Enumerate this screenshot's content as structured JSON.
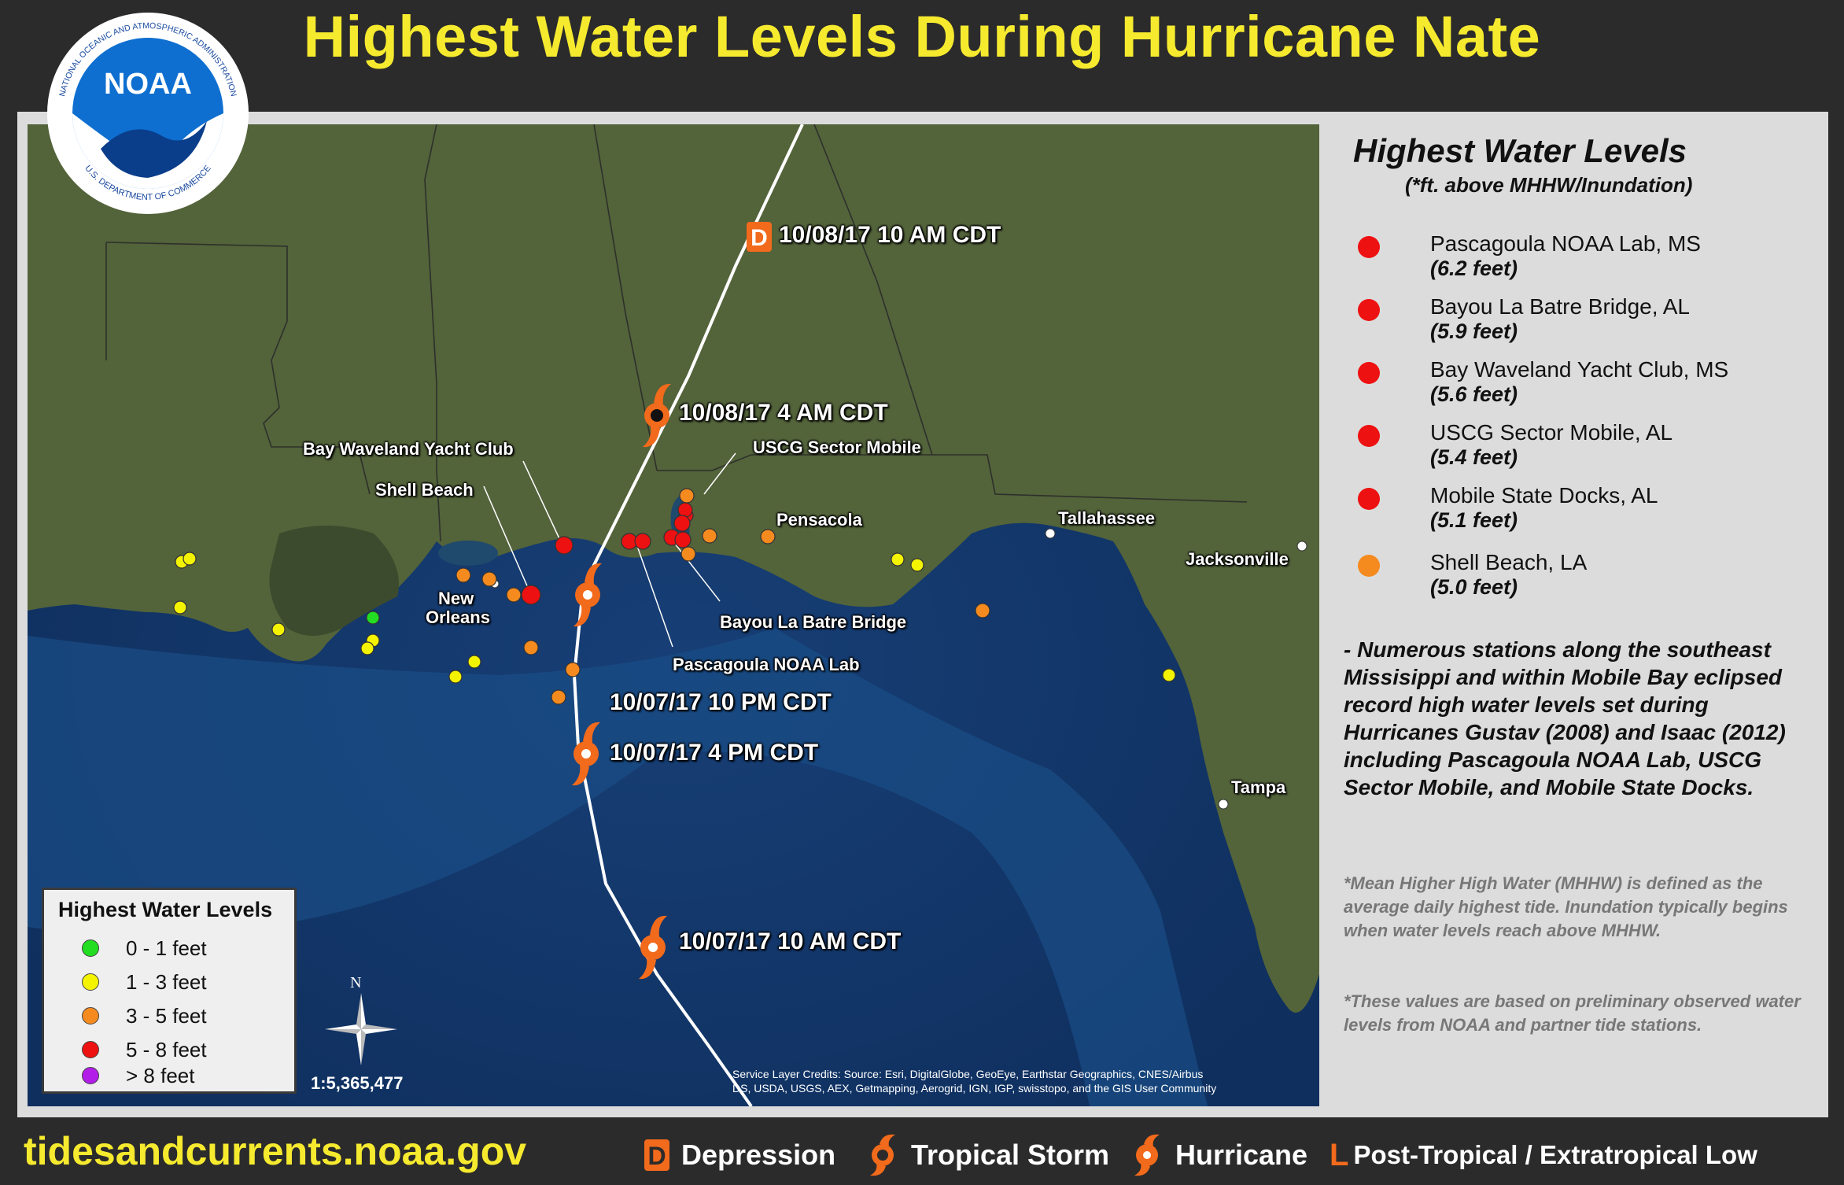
{
  "title": "Highest Water Levels During Hurricane Nate",
  "logo": {
    "text": "NOAA",
    "ring_top": "NATIONAL OCEANIC AND ATMOSPHERIC ADMINISTRATION",
    "ring_bottom": "U.S. DEPARTMENT OF COMMERCE"
  },
  "map": {
    "track_times": [
      "10/08/17 10 AM CDT",
      "10/08/17 4 AM CDT",
      "10/07/17 10 PM CDT",
      "10/07/17 4 PM CDT",
      "10/07/17 10 AM CDT"
    ],
    "station_labels": [
      "Bay Waveland Yacht Club",
      "Shell Beach",
      "USCG Sector Mobile",
      "Bayou La Batre Bridge",
      "Pascagoula NOAA Lab"
    ],
    "city_labels": [
      "Pensacola",
      "Tallahassee",
      "Jacksonville",
      "New",
      "Orleans",
      "Tampa"
    ],
    "credits_line1": "Service Layer Credits: Source: Esri, DigitalGlobe, GeoEye, Earthstar Geographics, CNES/Airbus",
    "credits_line2": "DS, USDA, USGS, AEX, Getmapping, Aerogrid, IGN, IGP, swisstopo, and the GIS User Community",
    "scale": "1:5,365,477",
    "north": "N"
  },
  "map_legend": {
    "title": "Highest Water Levels",
    "items": [
      {
        "label": "0 - 1 feet",
        "color": "#22dd22"
      },
      {
        "label": "1 - 3 feet",
        "color": "#f4f400"
      },
      {
        "label": "3 - 5 feet",
        "color": "#f58a1f"
      },
      {
        "label": "5 - 8 feet",
        "color": "#ee1111"
      },
      {
        "label": "> 8 feet",
        "color": "#b21ee8"
      }
    ]
  },
  "panel": {
    "title": "Highest Water Levels",
    "subtitle": "(*ft. above MHHW/Inundation)",
    "stations": [
      {
        "name": "Pascagoula NOAA Lab, MS",
        "value": "(6.2 feet)",
        "color": "#ee1111"
      },
      {
        "name": "Bayou La Batre Bridge, AL",
        "value": "(5.9 feet)",
        "color": "#ee1111"
      },
      {
        "name": "Bay Waveland Yacht Club, MS",
        "value": "(5.6 feet)",
        "color": "#ee1111"
      },
      {
        "name": "USCG Sector Mobile, AL",
        "value": "(5.4 feet)",
        "color": "#ee1111"
      },
      {
        "name": "Mobile State Docks, AL",
        "value": "(5.1 feet)",
        "color": "#ee1111"
      },
      {
        "name": "Shell Beach, LA",
        "value": "(5.0 feet)",
        "color": "#f58a1f"
      }
    ],
    "note": "-  Numerous stations along the southeast Missisippi and within Mobile Bay eclipsed record high water levels set during Hurricanes Gustav (2008) and Isaac (2012) including Pascagoula NOAA Lab, USCG Sector Mobile, and Mobile State Docks.",
    "fine1": "*Mean Higher High Water (MHHW) is defined as the average daily highest tide. Inundation typically begins when water levels reach above MHHW.",
    "fine2": "*These values are based on preliminary observed water levels from NOAA and partner tide stations."
  },
  "footer": {
    "site": "tidesandcurrents.noaa.gov",
    "depression": "Depression",
    "tropical_storm": "Tropical Storm",
    "hurricane": "Hurricane",
    "post_tropical": "Post-Tropical / Extratropical Low",
    "d_letter": "D",
    "l_letter": "L"
  },
  "colors": {
    "title": "#f6ea2f",
    "storm": "#f26a1b",
    "water": "#123a70",
    "land": "#53633a"
  }
}
